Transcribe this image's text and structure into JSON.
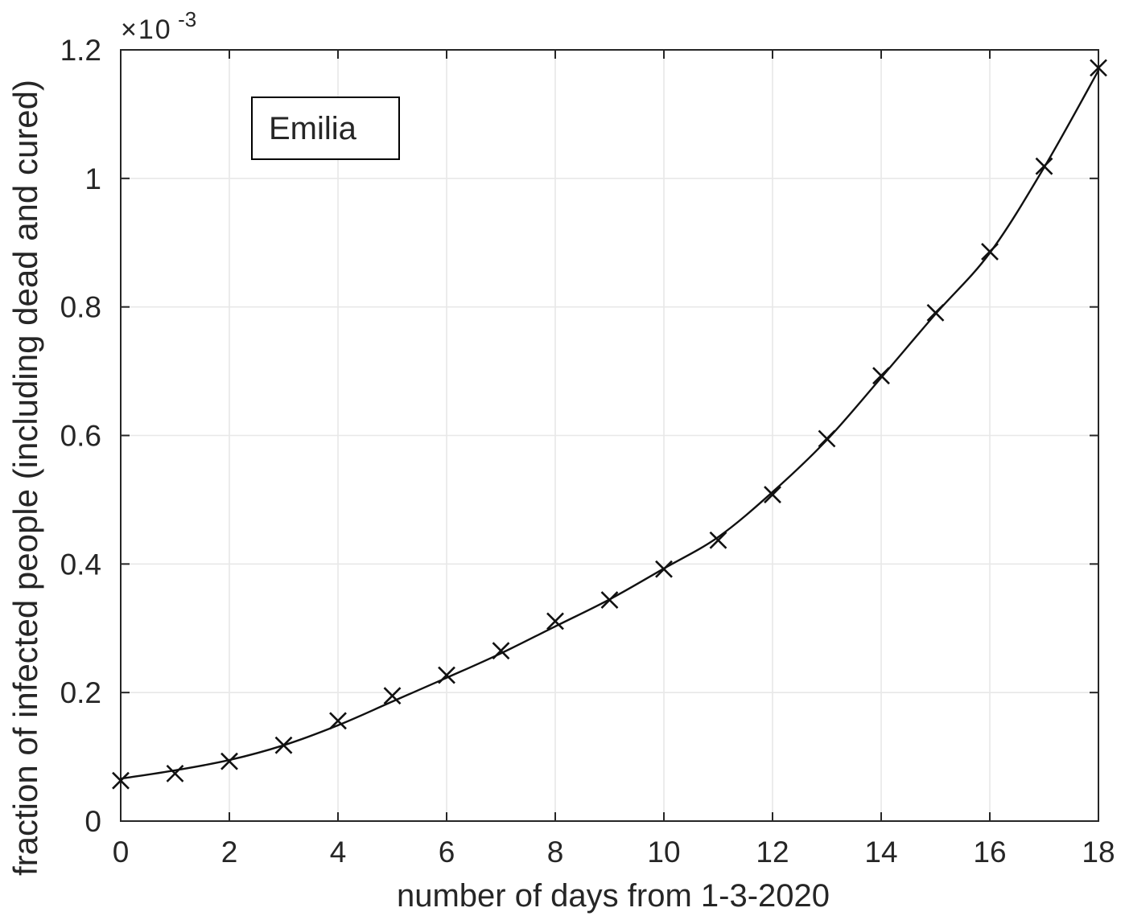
{
  "chart_data": {
    "type": "scatter",
    "legend_label": "Emilia",
    "xlabel": "number of days from 1-3-2020",
    "ylabel": "fraction of infected people (including dead and cured)",
    "y_exponent_label": "×10",
    "y_exponent_power": "-3",
    "marker": "x",
    "grid": true,
    "legend_position": "upper-left-inside",
    "xlim": [
      0,
      18
    ],
    "ylim_e3": [
      0,
      1.2
    ],
    "x_ticks": [
      0,
      2,
      4,
      6,
      8,
      10,
      12,
      14,
      16,
      18
    ],
    "x_tick_labels": [
      "0",
      "2",
      "4",
      "6",
      "8",
      "10",
      "12",
      "14",
      "16",
      "18"
    ],
    "y_ticks_e3": [
      0,
      0.2,
      0.4,
      0.6,
      0.8,
      1.0,
      1.2
    ],
    "y_tick_labels": [
      "0",
      "0.2",
      "0.4",
      "0.6",
      "0.8",
      "1",
      "1.2"
    ],
    "x": [
      0,
      1,
      2,
      3,
      4,
      5,
      6,
      7,
      8,
      9,
      10,
      11,
      12,
      13,
      14,
      15,
      16,
      17,
      18
    ],
    "scatter_values_e3": [
      0.063,
      0.074,
      0.093,
      0.118,
      0.156,
      0.195,
      0.227,
      0.265,
      0.311,
      0.344,
      0.392,
      0.437,
      0.508,
      0.595,
      0.693,
      0.791,
      0.886,
      1.019,
      1.172
    ],
    "fit_curve_values_e3": [
      0.066,
      0.079,
      0.095,
      0.118,
      0.149,
      0.186,
      0.223,
      0.261,
      0.303,
      0.345,
      0.393,
      0.442,
      0.512,
      0.593,
      0.69,
      0.789,
      0.884,
      1.017,
      1.168
    ],
    "colors": {
      "line": "#111111",
      "marker": "#111111",
      "axis": "#262626",
      "grid": "#e8e8e8",
      "tick_label": "#262626",
      "background": "#ffffff"
    }
  }
}
